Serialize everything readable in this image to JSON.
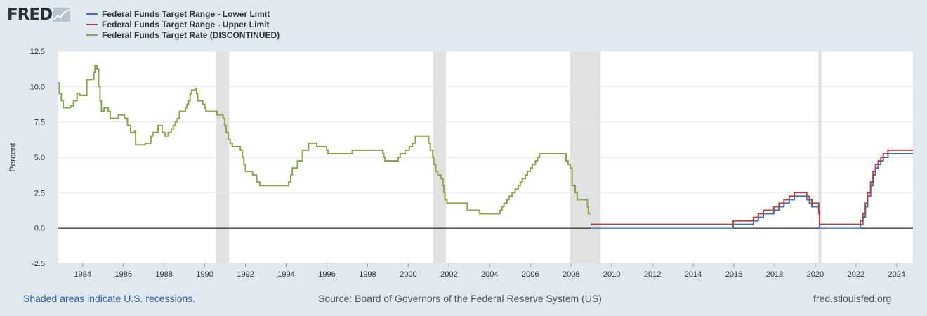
{
  "logo": {
    "text": "FRED"
  },
  "legend": [
    {
      "label": "Federal Funds Target Range - Lower Limit",
      "color": "#4572a7"
    },
    {
      "label": "Federal Funds Target Range - Upper Limit",
      "color": "#aa4643"
    },
    {
      "label": "Federal Funds Target Rate (DISCONTINUED)",
      "color": "#89a54e"
    }
  ],
  "footer": {
    "recession_note": "Shaded areas indicate U.S. recessions.",
    "source": "Source: Board of Governors of the Federal Reserve System (US)",
    "site": "fred.stlouisfed.org"
  },
  "chart_data": {
    "type": "line",
    "ylabel": "Percent",
    "ylim": [
      -2.5,
      12.5
    ],
    "xlim": [
      1982.8,
      2024.8
    ],
    "y_ticks": [
      -2.5,
      0.0,
      2.5,
      5.0,
      7.5,
      10.0,
      12.5
    ],
    "y_tick_labels": [
      "-2.5",
      "0.0",
      "2.5",
      "5.0",
      "7.5",
      "10.0",
      "12.5"
    ],
    "x_ticks": [
      1984,
      1986,
      1988,
      1990,
      1992,
      1994,
      1996,
      1998,
      2000,
      2002,
      2004,
      2006,
      2008,
      2010,
      2012,
      2014,
      2016,
      2018,
      2020,
      2022,
      2024
    ],
    "grid": true,
    "zero_line": true,
    "recessions": [
      [
        1990.55,
        1991.2
      ],
      [
        2001.2,
        2001.85
      ],
      [
        2007.95,
        2009.45
      ],
      [
        2020.15,
        2020.3
      ]
    ],
    "series": [
      {
        "name": "Federal Funds Target Range - Lower Limit",
        "color": "#4572a7",
        "points": [
          [
            2008.96,
            0.0
          ],
          [
            2015.96,
            0.25
          ],
          [
            2016.96,
            0.5
          ],
          [
            2017.2,
            0.75
          ],
          [
            2017.45,
            1.0
          ],
          [
            2017.96,
            1.25
          ],
          [
            2018.22,
            1.5
          ],
          [
            2018.46,
            1.75
          ],
          [
            2018.72,
            2.0
          ],
          [
            2018.97,
            2.25
          ],
          [
            2019.58,
            2.0
          ],
          [
            2019.71,
            1.75
          ],
          [
            2019.83,
            1.5
          ],
          [
            2020.17,
            1.0
          ],
          [
            2020.21,
            0.0
          ],
          [
            2022.21,
            0.25
          ],
          [
            2022.34,
            0.75
          ],
          [
            2022.46,
            1.5
          ],
          [
            2022.57,
            2.25
          ],
          [
            2022.72,
            3.0
          ],
          [
            2022.84,
            3.75
          ],
          [
            2022.96,
            4.25
          ],
          [
            2023.09,
            4.5
          ],
          [
            2023.22,
            4.75
          ],
          [
            2023.34,
            5.0
          ],
          [
            2023.57,
            5.25
          ],
          [
            2024.8,
            5.25
          ]
        ]
      },
      {
        "name": "Federal Funds Target Range - Upper Limit",
        "color": "#aa4643",
        "points": [
          [
            2008.96,
            0.25
          ],
          [
            2015.96,
            0.5
          ],
          [
            2016.96,
            0.75
          ],
          [
            2017.2,
            1.0
          ],
          [
            2017.45,
            1.25
          ],
          [
            2017.96,
            1.5
          ],
          [
            2018.22,
            1.75
          ],
          [
            2018.46,
            2.0
          ],
          [
            2018.72,
            2.25
          ],
          [
            2018.97,
            2.5
          ],
          [
            2019.58,
            2.25
          ],
          [
            2019.71,
            2.0
          ],
          [
            2019.83,
            1.75
          ],
          [
            2020.17,
            1.25
          ],
          [
            2020.21,
            0.25
          ],
          [
            2022.21,
            0.5
          ],
          [
            2022.34,
            1.0
          ],
          [
            2022.46,
            1.75
          ],
          [
            2022.57,
            2.5
          ],
          [
            2022.72,
            3.25
          ],
          [
            2022.84,
            4.0
          ],
          [
            2022.96,
            4.5
          ],
          [
            2023.09,
            4.75
          ],
          [
            2023.22,
            5.0
          ],
          [
            2023.34,
            5.25
          ],
          [
            2023.57,
            5.5
          ],
          [
            2024.8,
            5.5
          ]
        ]
      },
      {
        "name": "Federal Funds Target Rate (DISCONTINUED)",
        "color": "#89a54e",
        "points": [
          [
            1982.8,
            10.25
          ],
          [
            1982.85,
            9.5
          ],
          [
            1982.95,
            9.0
          ],
          [
            1983.05,
            8.5
          ],
          [
            1983.4,
            8.63
          ],
          [
            1983.55,
            9.0
          ],
          [
            1983.72,
            9.5
          ],
          [
            1983.85,
            9.38
          ],
          [
            1984.2,
            9.38
          ],
          [
            1984.2,
            10.5
          ],
          [
            1984.5,
            10.5
          ],
          [
            1984.55,
            11.0
          ],
          [
            1984.6,
            11.5
          ],
          [
            1984.7,
            11.25
          ],
          [
            1984.78,
            10.0
          ],
          [
            1984.85,
            9.0
          ],
          [
            1984.92,
            8.25
          ],
          [
            1985.05,
            8.5
          ],
          [
            1985.25,
            8.25
          ],
          [
            1985.35,
            7.75
          ],
          [
            1985.7,
            7.75
          ],
          [
            1985.75,
            8.0
          ],
          [
            1986.0,
            8.0
          ],
          [
            1986.05,
            7.75
          ],
          [
            1986.2,
            7.25
          ],
          [
            1986.35,
            6.75
          ],
          [
            1986.55,
            6.88
          ],
          [
            1986.6,
            6.25
          ],
          [
            1986.6,
            5.88
          ],
          [
            1987.0,
            5.88
          ],
          [
            1987.08,
            6.0
          ],
          [
            1987.3,
            6.0
          ],
          [
            1987.35,
            6.5
          ],
          [
            1987.45,
            6.75
          ],
          [
            1987.65,
            6.75
          ],
          [
            1987.7,
            7.25
          ],
          [
            1987.85,
            7.25
          ],
          [
            1987.9,
            6.75
          ],
          [
            1988.0,
            6.75
          ],
          [
            1988.05,
            6.5
          ],
          [
            1988.2,
            6.75
          ],
          [
            1988.35,
            7.0
          ],
          [
            1988.45,
            7.25
          ],
          [
            1988.55,
            7.5
          ],
          [
            1988.65,
            7.75
          ],
          [
            1988.75,
            8.25
          ],
          [
            1988.95,
            8.25
          ],
          [
            1989.05,
            8.5
          ],
          [
            1989.12,
            8.75
          ],
          [
            1989.2,
            9.0
          ],
          [
            1989.28,
            9.5
          ],
          [
            1989.35,
            9.75
          ],
          [
            1989.55,
            9.88
          ],
          [
            1989.6,
            9.5
          ],
          [
            1989.65,
            9.0
          ],
          [
            1989.85,
            9.0
          ],
          [
            1989.9,
            8.75
          ],
          [
            1990.0,
            8.5
          ],
          [
            1990.05,
            8.25
          ],
          [
            1990.55,
            8.25
          ],
          [
            1990.6,
            8.0
          ],
          [
            1990.85,
            8.0
          ],
          [
            1990.9,
            7.75
          ],
          [
            1990.98,
            7.25
          ],
          [
            1991.05,
            6.75
          ],
          [
            1991.15,
            6.25
          ],
          [
            1991.25,
            6.0
          ],
          [
            1991.35,
            5.75
          ],
          [
            1991.7,
            5.75
          ],
          [
            1991.75,
            5.5
          ],
          [
            1991.85,
            5.0
          ],
          [
            1991.92,
            4.5
          ],
          [
            1992.0,
            4.0
          ],
          [
            1992.3,
            4.0
          ],
          [
            1992.35,
            3.75
          ],
          [
            1992.55,
            3.25
          ],
          [
            1992.7,
            3.0
          ],
          [
            1994.05,
            3.0
          ],
          [
            1994.12,
            3.25
          ],
          [
            1994.22,
            3.75
          ],
          [
            1994.3,
            4.25
          ],
          [
            1994.55,
            4.75
          ],
          [
            1994.8,
            5.5
          ],
          [
            1995.0,
            5.5
          ],
          [
            1995.1,
            6.0
          ],
          [
            1995.45,
            6.0
          ],
          [
            1995.5,
            5.75
          ],
          [
            1995.9,
            5.75
          ],
          [
            1995.98,
            5.5
          ],
          [
            1996.05,
            5.25
          ],
          [
            1997.2,
            5.25
          ],
          [
            1997.25,
            5.5
          ],
          [
            1998.7,
            5.5
          ],
          [
            1998.75,
            5.25
          ],
          [
            1998.8,
            5.0
          ],
          [
            1998.85,
            4.75
          ],
          [
            1999.45,
            4.75
          ],
          [
            1999.5,
            5.0
          ],
          [
            1999.6,
            5.25
          ],
          [
            1999.85,
            5.5
          ],
          [
            2000.05,
            5.75
          ],
          [
            2000.2,
            6.0
          ],
          [
            2000.35,
            6.5
          ],
          [
            2000.95,
            6.5
          ],
          [
            2001.0,
            6.0
          ],
          [
            2001.08,
            5.5
          ],
          [
            2001.2,
            5.0
          ],
          [
            2001.25,
            4.5
          ],
          [
            2001.35,
            4.0
          ],
          [
            2001.45,
            3.75
          ],
          [
            2001.6,
            3.5
          ],
          [
            2001.7,
            3.0
          ],
          [
            2001.75,
            2.5
          ],
          [
            2001.8,
            2.0
          ],
          [
            2001.9,
            1.75
          ],
          [
            2002.85,
            1.75
          ],
          [
            2002.9,
            1.25
          ],
          [
            2003.45,
            1.25
          ],
          [
            2003.5,
            1.0
          ],
          [
            2004.45,
            1.0
          ],
          [
            2004.5,
            1.25
          ],
          [
            2004.6,
            1.5
          ],
          [
            2004.7,
            1.75
          ],
          [
            2004.85,
            2.0
          ],
          [
            2004.95,
            2.25
          ],
          [
            2005.1,
            2.5
          ],
          [
            2005.25,
            2.75
          ],
          [
            2005.4,
            3.0
          ],
          [
            2005.5,
            3.25
          ],
          [
            2005.6,
            3.5
          ],
          [
            2005.75,
            3.75
          ],
          [
            2005.85,
            4.0
          ],
          [
            2006.0,
            4.25
          ],
          [
            2006.1,
            4.5
          ],
          [
            2006.25,
            4.75
          ],
          [
            2006.35,
            5.0
          ],
          [
            2006.45,
            5.25
          ],
          [
            2007.7,
            5.25
          ],
          [
            2007.75,
            4.75
          ],
          [
            2007.85,
            4.5
          ],
          [
            2007.95,
            4.25
          ],
          [
            2008.05,
            3.0
          ],
          [
            2008.2,
            2.5
          ],
          [
            2008.3,
            2.0
          ],
          [
            2008.75,
            2.0
          ],
          [
            2008.8,
            1.5
          ],
          [
            2008.85,
            1.0
          ],
          [
            2008.95,
            1.0
          ]
        ]
      }
    ]
  }
}
